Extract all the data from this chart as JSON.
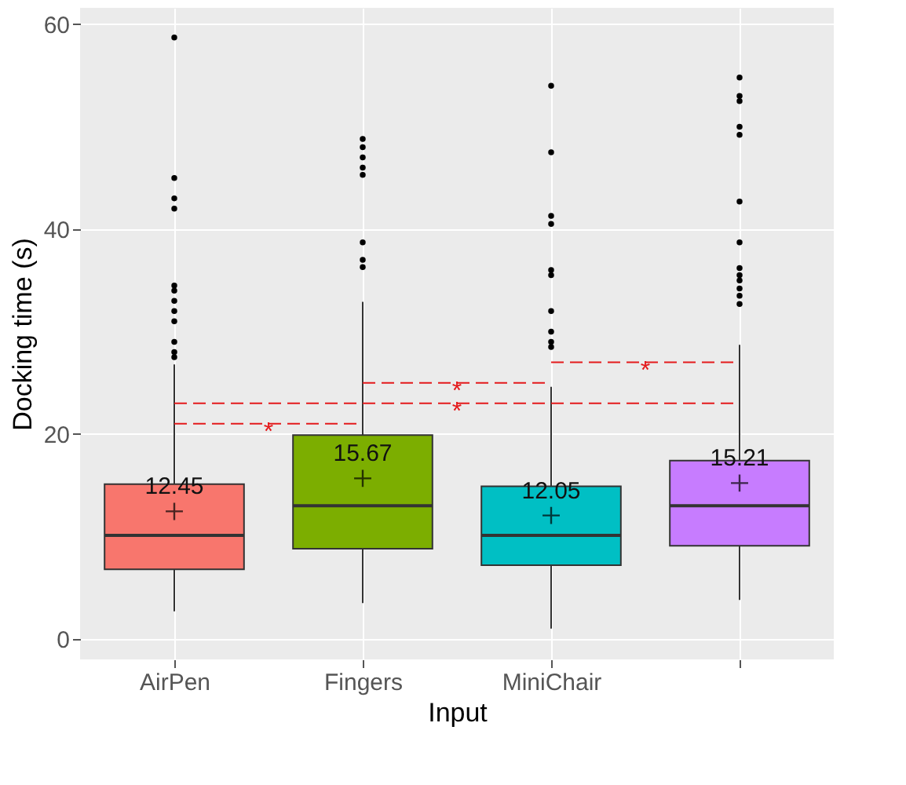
{
  "chart_data": {
    "type": "box",
    "xlabel": "Input",
    "ylabel": "Docking time (s)",
    "categories": [
      "AirPen",
      "Fingers",
      "MiniChair",
      null
    ],
    "colors": [
      "#f8766d",
      "#7cae00",
      "#00bfc4",
      "#c77cff"
    ],
    "boxes": [
      {
        "low": 2.7,
        "q1": 6.8,
        "median": 10.1,
        "q3": 15.1,
        "high": 26.8,
        "mean": 12.45,
        "outliers": [
          27.5,
          28,
          29,
          31,
          32,
          33,
          34,
          34.5,
          42,
          43,
          45,
          58.7
        ]
      },
      {
        "low": 3.5,
        "q1": 8.8,
        "median": 13,
        "q3": 19.9,
        "high": 32.9,
        "mean": 15.67,
        "outliers": [
          36.3,
          37,
          38.7,
          45.3,
          46,
          47,
          48,
          48.8
        ]
      },
      {
        "low": 1,
        "q1": 7.2,
        "median": 10.1,
        "q3": 14.9,
        "high": 24.6,
        "mean": 12.05,
        "outliers": [
          28.5,
          29,
          30,
          32,
          35.5,
          36,
          40.5,
          41.3,
          47.5,
          54
        ]
      },
      {
        "low": 3.8,
        "q1": 9.1,
        "median": 13,
        "q3": 17.4,
        "high": 28.7,
        "mean": 15.21,
        "outliers": [
          32.7,
          33.5,
          34.2,
          35,
          35.5,
          36.2,
          38.7,
          42.7,
          49.2,
          50,
          52.5,
          53,
          54.8
        ]
      }
    ],
    "value_labels": [
      "12.45",
      "15.67",
      "12.05",
      "15.21"
    ],
    "annotations": [
      "*",
      "*",
      "*",
      "*"
    ],
    "ylim": [
      -2,
      61.6
    ],
    "yticks": [
      0,
      20,
      40,
      60
    ],
    "grid": true
  }
}
